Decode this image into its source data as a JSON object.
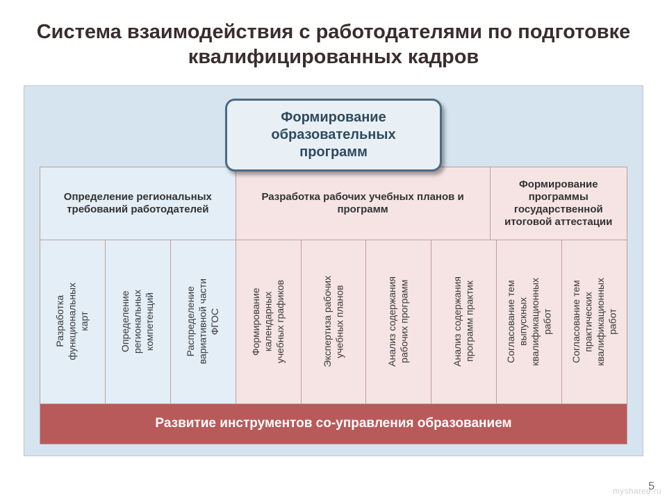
{
  "layout": {
    "slide_width": 960,
    "slide_height": 720,
    "panel_bg": "#d6e4ef",
    "panel_border": "#b7c7d4",
    "cell_border": "#c19d9d",
    "blue_fill": "#e3eef7",
    "pink_fill": "#f6e4e4",
    "footer_fill": "#b85a5a",
    "title_color": "#3a2d2d",
    "header_text_color": "#2f4a5e",
    "header_border": "#4b6a84"
  },
  "title": "Система взаимодействия с работодателями по подготовке квалифицированных кадров",
  "header": "Формирование образовательных программ",
  "categories": [
    {
      "label": "Определение региональных требований работодателей",
      "fill": "blue",
      "span": 3
    },
    {
      "label": "Разработка рабочих учебных планов и программ",
      "fill": "pink",
      "span": 4
    },
    {
      "label": "Формирование программы государственной итоговой аттестации",
      "fill": "pink",
      "span": 2
    }
  ],
  "columns": [
    {
      "label": "Разработка\nфункциональных\nкарт",
      "fill": "blue"
    },
    {
      "label": "Определение\nрегиональных\nкомпетенций",
      "fill": "blue"
    },
    {
      "label": "Распределение\nвариативной части\nФГОС",
      "fill": "blue"
    },
    {
      "label": "Формирование\nкалендарных\nучебных графиков",
      "fill": "pink"
    },
    {
      "label": "Экспертиза рабочих\nучебных планов",
      "fill": "pink"
    },
    {
      "label": "Анализ содержания\nрабочих программ",
      "fill": "pink"
    },
    {
      "label": "Анализ содержания\nпрограмм практик",
      "fill": "pink"
    },
    {
      "label": "Согласование тем\nвыпускных\nквалификационных\nработ",
      "fill": "pink"
    },
    {
      "label": "Согласование тем\nпрактических\nквалификационных\nработ",
      "fill": "pink"
    }
  ],
  "footer": "Развитие инструментов со-управления образованием",
  "pagenum": "5",
  "watermark": "myshared.ru"
}
